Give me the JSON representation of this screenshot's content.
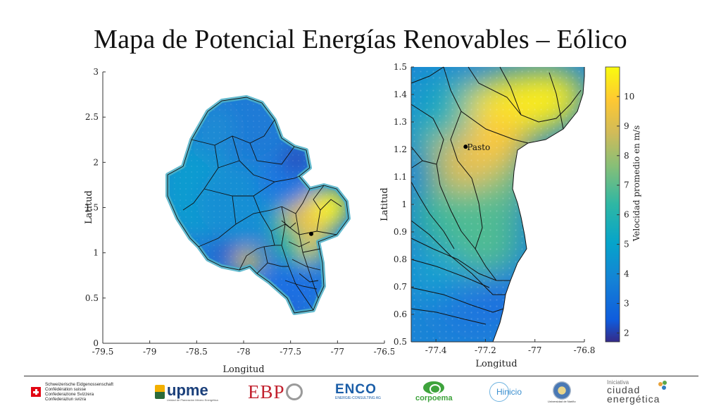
{
  "slide": {
    "title": "Mapa de Potencial Energías Renovables – Eólico"
  },
  "chart_data": [
    {
      "type": "heatmap",
      "title": "",
      "xlabel": "Longitud",
      "ylabel": "Latitud",
      "xlim": [
        -79.5,
        -76.5
      ],
      "ylim": [
        0,
        3
      ],
      "xticks": [
        "-79.5",
        "-79",
        "-78.5",
        "-78",
        "-77.5",
        "-77",
        "-76.5"
      ],
      "yticks": [
        "0",
        "0.5",
        "1",
        "1.5",
        "2",
        "2.5",
        "3"
      ],
      "grid": false,
      "point_marker": {
        "lon": -77.28,
        "lat": 1.21
      }
    },
    {
      "type": "heatmap",
      "title": "",
      "xlabel": "Longitud",
      "ylabel": "Latitud",
      "xlim": [
        -77.5,
        -76.8
      ],
      "ylim": [
        0.5,
        1.5
      ],
      "xticks": [
        "-77.4",
        "-77.2",
        "-77",
        "-76.8"
      ],
      "yticks": [
        "0.5",
        "0.6",
        "0.7",
        "0.8",
        "0.9",
        "1",
        "1.1",
        "1.2",
        "1.3",
        "1.4",
        "1.5"
      ],
      "grid": false,
      "point_marker": {
        "lon": -77.28,
        "lat": 1.21,
        "label": "Pasto"
      },
      "colorbar": {
        "label": "Velocidad promedio en m/s",
        "range": [
          1.7,
          11.0
        ],
        "ticks": [
          "2",
          "3",
          "4",
          "5",
          "6",
          "7",
          "8",
          "9",
          "10"
        ],
        "colormap": [
          "#352a87",
          "#0f5cdd",
          "#1481d6",
          "#06a4ca",
          "#2eb7a4",
          "#87bf77",
          "#d1bb59",
          "#fec832",
          "#f9fb0e"
        ]
      }
    }
  ],
  "footer": {
    "swiss": [
      "Schweizerische Eidgenossenschaft",
      "Confédération suisse",
      "Confederazione Svizzera",
      "Confederaziun svizra"
    ],
    "upme": {
      "name": "upme",
      "sub": "Unidad de Planeación Minero Energética"
    },
    "ebp": "EBP",
    "enco": {
      "name": "ENCO",
      "sub": "ENERGIE-CONSULTING AG"
    },
    "corpoema": "corpoema",
    "hinicio": "Hinicio",
    "narino": "Universidad de Nariño",
    "ciudad": [
      "Iniciativa",
      "ciudad",
      "energética"
    ]
  }
}
